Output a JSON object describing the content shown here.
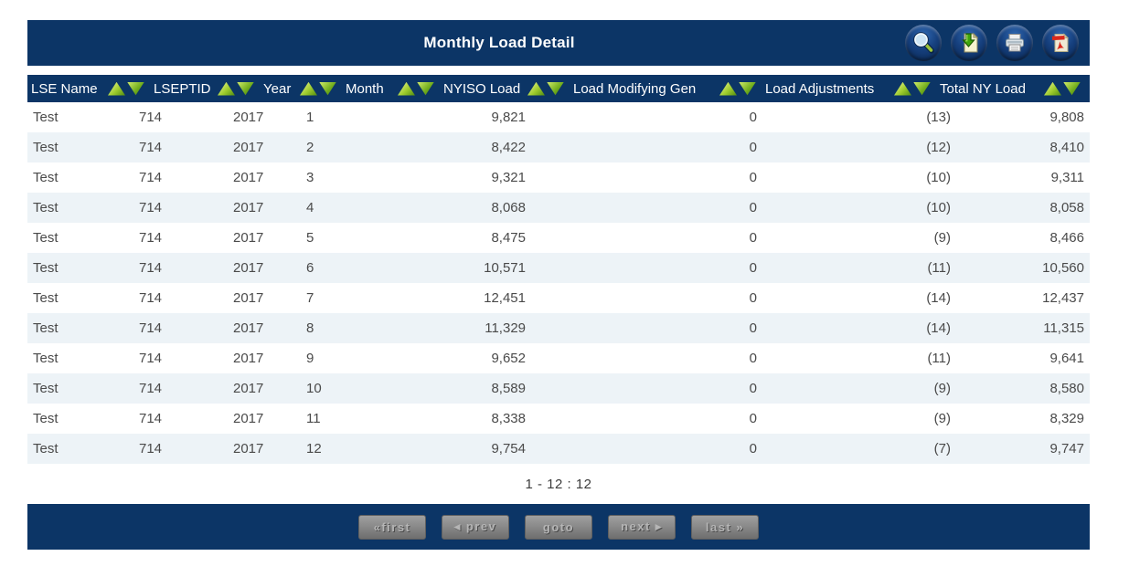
{
  "window": {
    "title": "Monthly Load Detail"
  },
  "toolbar": {
    "icons": [
      {
        "name": "search"
      },
      {
        "name": "download-export"
      },
      {
        "name": "print"
      },
      {
        "name": "pdf-export"
      }
    ]
  },
  "table": {
    "columns": [
      {
        "key": "lse_name",
        "label": "LSE Name",
        "align": "left"
      },
      {
        "key": "lseptid",
        "label": "LSEPTID",
        "align": "left"
      },
      {
        "key": "year",
        "label": "Year",
        "align": "left"
      },
      {
        "key": "month",
        "label": "Month",
        "align": "left"
      },
      {
        "key": "nyiso_load",
        "label": "NYISO Load",
        "align": "right"
      },
      {
        "key": "load_modifying_gen",
        "label": "Load Modifying Gen",
        "align": "right"
      },
      {
        "key": "load_adjustments",
        "label": "Load Adjustments",
        "align": "right"
      },
      {
        "key": "total_ny_load",
        "label": "Total NY Load",
        "align": "right"
      }
    ],
    "rows": [
      [
        "Test",
        "714",
        "2017",
        "1",
        "9,821",
        "0",
        "(13)",
        "9,808"
      ],
      [
        "Test",
        "714",
        "2017",
        "2",
        "8,422",
        "0",
        "(12)",
        "8,410"
      ],
      [
        "Test",
        "714",
        "2017",
        "3",
        "9,321",
        "0",
        "(10)",
        "9,311"
      ],
      [
        "Test",
        "714",
        "2017",
        "4",
        "8,068",
        "0",
        "(10)",
        "8,058"
      ],
      [
        "Test",
        "714",
        "2017",
        "5",
        "8,475",
        "0",
        "(9)",
        "8,466"
      ],
      [
        "Test",
        "714",
        "2017",
        "6",
        "10,571",
        "0",
        "(11)",
        "10,560"
      ],
      [
        "Test",
        "714",
        "2017",
        "7",
        "12,451",
        "0",
        "(14)",
        "12,437"
      ],
      [
        "Test",
        "714",
        "2017",
        "8",
        "11,329",
        "0",
        "(14)",
        "11,315"
      ],
      [
        "Test",
        "714",
        "2017",
        "9",
        "9,652",
        "0",
        "(11)",
        "9,641"
      ],
      [
        "Test",
        "714",
        "2017",
        "10",
        "8,589",
        "0",
        "(9)",
        "8,580"
      ],
      [
        "Test",
        "714",
        "2017",
        "11",
        "8,338",
        "0",
        "(9)",
        "8,329"
      ],
      [
        "Test",
        "714",
        "2017",
        "12",
        "9,754",
        "0",
        "(7)",
        "9,747"
      ]
    ]
  },
  "pagination": {
    "summary": "1 - 12 : 12",
    "buttons": [
      {
        "key": "first",
        "label": "«first"
      },
      {
        "key": "prev",
        "label": "◂ prev"
      },
      {
        "key": "goto",
        "label": "goto"
      },
      {
        "key": "next",
        "label": "next ▸"
      },
      {
        "key": "last",
        "label": "last »"
      }
    ]
  },
  "colors": {
    "navy": "#0c3566",
    "alt_row": "#edf3f7",
    "row_text": "#4a4a4a",
    "sort_green": "#76b021",
    "button_gray": "#8a8a8a"
  }
}
